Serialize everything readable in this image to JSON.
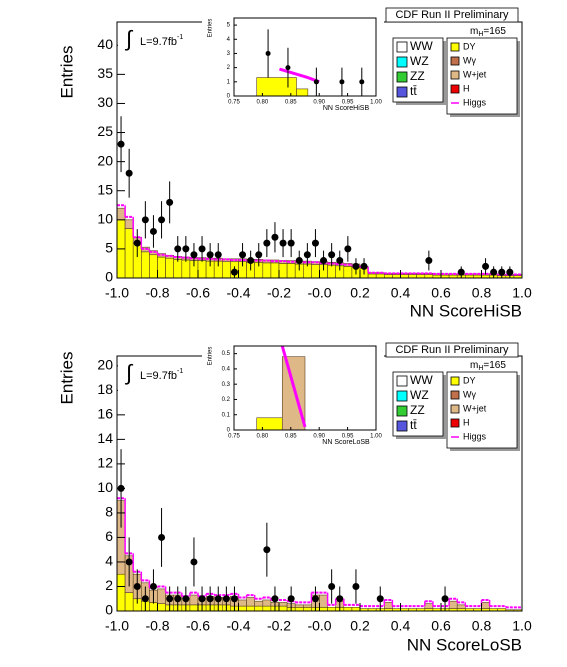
{
  "chart_data": [
    {
      "type": "histogram",
      "title": "CDF Run II Preliminary",
      "mass_label": {
        "main": "m",
        "sub": "H",
        "rest": "=165"
      },
      "lumi": {
        "symbol": "∫",
        "main": "L=9.7fb",
        "sup": "-1"
      },
      "xlabel": "NN ScoreHiSB",
      "ylabel": "Entries",
      "xlim": [
        -1,
        1
      ],
      "ylim": [
        0,
        44
      ],
      "xticks": [
        {
          "value": -1,
          "label": "-1.0"
        },
        -0.8,
        -0.6,
        -0.4,
        -0.2,
        {
          "value": 0,
          "label": "-0.0"
        },
        0.2,
        0.4,
        0.6,
        0.8,
        {
          "value": 1,
          "label": "1.0"
        }
      ],
      "yticks": [
        0,
        5,
        10,
        15,
        20,
        25,
        30,
        35,
        40
      ],
      "bins": [
        -1,
        -0.96,
        -0.92,
        -0.88,
        -0.84,
        -0.8,
        -0.76,
        -0.72,
        -0.68,
        -0.64,
        -0.6,
        -0.56,
        -0.52,
        -0.48,
        -0.44,
        -0.4,
        -0.36,
        -0.32,
        -0.28,
        -0.24,
        -0.2,
        -0.16,
        -0.12,
        -0.08,
        -0.04,
        0,
        0.04,
        0.08,
        0.12,
        0.16,
        0.2,
        0.24,
        0.28,
        0.32,
        0.36,
        0.4,
        0.44,
        0.48,
        0.52,
        0.56,
        0.6,
        0.64,
        0.68,
        0.72,
        0.76,
        0.8,
        0.84,
        0.88,
        0.92,
        0.96,
        1
      ],
      "series": [
        {
          "name": "WW",
          "color": "#ffffff"
        },
        {
          "name": "WZ",
          "color": "#00ffff"
        },
        {
          "name": "ZZ",
          "color": "#33cc33"
        },
        {
          "name": "tt̄",
          "color": "#5555dd"
        },
        {
          "name": "DY",
          "color": "#ffff00",
          "values": [
            10,
            8.5,
            6,
            4.5,
            4,
            3.6,
            3.4,
            3.2,
            3.1,
            3,
            3,
            2.9,
            2.9,
            2.8,
            2.8,
            2.8,
            2.7,
            2.7,
            2.6,
            2.6,
            2.5,
            2.5,
            2.4,
            2.4,
            2.3,
            2.3,
            2.2,
            2.1,
            2,
            1.9,
            1.7,
            0.7,
            0.7,
            0.6,
            0.6,
            0.6,
            0.6,
            0.6,
            0.6,
            0.5,
            0.5,
            0.5,
            0.5,
            0.5,
            0.5,
            0.5,
            0.5,
            0.4,
            0.4,
            0.4
          ]
        },
        {
          "name": "Wγ",
          "color": "#c0704a"
        },
        {
          "name": "W+jet",
          "color": "#deb887",
          "values": [
            2,
            1.5,
            1,
            0.8,
            0.7,
            0.6,
            0.5,
            0.5,
            0.5,
            0.5,
            0.5,
            0.5,
            0.5,
            0.5,
            0.5,
            0.5,
            0.5,
            0.5,
            0.5,
            0.5,
            0.5,
            0.5,
            0.5,
            0.5,
            0.5,
            0.5,
            0.5,
            0.5,
            0.5,
            0.5,
            0.3,
            0.2,
            0.2,
            0.2,
            0.2,
            0.2,
            0.2,
            0.2,
            0.2,
            0.2,
            0.2,
            0.2,
            0.2,
            0.2,
            0.2,
            0.2,
            0.2,
            0.2,
            0.2,
            0.2
          ]
        },
        {
          "name": "H",
          "color": "#ee0000"
        },
        {
          "name": "Higgs",
          "color": "#ff00ff",
          "style": "line",
          "values": [
            12.5,
            10.5,
            7,
            5,
            4.5,
            4,
            3.8,
            3.6,
            3.5,
            3.4,
            3.3,
            3.3,
            3.2,
            3.2,
            3.1,
            3.1,
            3,
            3,
            3,
            2.9,
            2.9,
            2.8,
            2.8,
            2.7,
            2.7,
            2.6,
            2.5,
            2.4,
            2.3,
            2.1,
            1.9,
            0.9,
            0.9,
            0.8,
            0.8,
            0.8,
            0.8,
            0.8,
            0.8,
            0.7,
            0.7,
            0.7,
            0.7,
            0.7,
            0.7,
            0.7,
            0.7,
            0.6,
            0.6,
            0.6
          ]
        }
      ],
      "points": {
        "x": [
          -0.98,
          -0.94,
          -0.9,
          -0.86,
          -0.82,
          -0.78,
          -0.74,
          -0.7,
          -0.66,
          -0.62,
          -0.58,
          -0.54,
          -0.5,
          -0.42,
          -0.38,
          -0.34,
          -0.3,
          -0.26,
          -0.22,
          -0.18,
          -0.14,
          -0.1,
          -0.06,
          -0.02,
          0.02,
          0.06,
          0.1,
          0.14,
          0.18,
          0.22,
          0.54,
          0.7,
          0.82,
          0.86,
          0.9,
          0.94
        ],
        "y": [
          23,
          18,
          6,
          10,
          8,
          10,
          13,
          5,
          5,
          4,
          5,
          4,
          4,
          1,
          4,
          3,
          4,
          6,
          7,
          6,
          6,
          3,
          4,
          6,
          3,
          4,
          3,
          5,
          2,
          2,
          3,
          1,
          2,
          1,
          1,
          1
        ],
        "errors": [
          4.8,
          4.2,
          2.4,
          3.2,
          2.8,
          3.2,
          3.6,
          2.2,
          2.2,
          2,
          2.2,
          2,
          2,
          1,
          2,
          1.7,
          2,
          2.4,
          2.6,
          2.4,
          2.4,
          1.7,
          2,
          2.4,
          1.7,
          2,
          1.7,
          2.2,
          1.4,
          1.4,
          1.7,
          1,
          1.4,
          1,
          1,
          1
        ]
      },
      "inset": {
        "xlabel": "NN ScoreHiSB",
        "ylabel": "Entries",
        "xlim": [
          0.75,
          1
        ],
        "ylim": [
          0,
          5.5
        ],
        "xticks": [
          0.75,
          {
            "value": 0.8,
            "label": "0.80"
          },
          0.85,
          {
            "value": 0.9,
            "label": "0.90"
          },
          0.95,
          {
            "value": 1,
            "label": "1.00"
          }
        ],
        "yticks": [
          0,
          1,
          2,
          3,
          4,
          5
        ],
        "bins": [
          0.79,
          0.86,
          0.88
        ],
        "stack": [
          {
            "color": "#ffff00",
            "values": [
              1.3,
              0.5
            ]
          }
        ],
        "signal": {
          "color": "#ff00ff",
          "x": [
            0.83,
            0.88,
            0.9
          ],
          "y": [
            1.9,
            1.3,
            1
          ]
        },
        "points": {
          "x": [
            0.81,
            0.845,
            0.895,
            0.94,
            0.975
          ],
          "y": [
            3,
            2,
            1,
            1,
            1
          ],
          "errors": [
            1.7,
            1.4,
            1,
            1,
            1
          ]
        }
      }
    },
    {
      "type": "histogram",
      "title": "CDF Run II Preliminary",
      "mass_label": {
        "main": "m",
        "sub": "H",
        "rest": "=165"
      },
      "lumi": {
        "symbol": "∫",
        "main": "L=9.7fb",
        "sup": "-1"
      },
      "xlabel": "NN ScoreLoSB",
      "ylabel": "Entries",
      "xlim": [
        -1,
        1
      ],
      "ylim": [
        0,
        20.8
      ],
      "xticks": [
        {
          "value": -1,
          "label": "-1.0"
        },
        -0.8,
        -0.6,
        -0.4,
        -0.2,
        {
          "value": 0,
          "label": "-0.0"
        },
        0.2,
        0.4,
        0.6,
        0.8,
        {
          "value": 1,
          "label": "1.0"
        }
      ],
      "yticks": [
        0,
        2,
        4,
        6,
        8,
        10,
        12,
        14,
        16,
        18,
        20
      ],
      "bins": [
        -1,
        -0.96,
        -0.92,
        -0.88,
        -0.84,
        -0.8,
        -0.76,
        -0.72,
        -0.68,
        -0.64,
        -0.6,
        -0.56,
        -0.52,
        -0.48,
        -0.44,
        -0.4,
        -0.36,
        -0.32,
        -0.28,
        -0.24,
        -0.2,
        -0.16,
        -0.12,
        -0.08,
        -0.04,
        0,
        0.04,
        0.08,
        0.12,
        0.16,
        0.2,
        0.24,
        0.28,
        0.32,
        0.36,
        0.4,
        0.44,
        0.48,
        0.52,
        0.56,
        0.6,
        0.64,
        0.68,
        0.72,
        0.76,
        0.8,
        0.84,
        0.88,
        0.92,
        0.96,
        1
      ],
      "series": [
        {
          "name": "WW",
          "color": "#ffffff"
        },
        {
          "name": "WZ",
          "color": "#00ffff"
        },
        {
          "name": "ZZ",
          "color": "#33cc33"
        },
        {
          "name": "tt̄",
          "color": "#5555dd"
        },
        {
          "name": "DY",
          "color": "#ffff00",
          "values": [
            3,
            1.5,
            1,
            0.8,
            0.7,
            0.6,
            0.5,
            0.5,
            0.5,
            0.5,
            0.5,
            0.5,
            0.5,
            0.5,
            0.4,
            0.4,
            0.4,
            0.4,
            0.4,
            0.4,
            0.4,
            0.3,
            0.3,
            0.3,
            0.3,
            0.3,
            0.3,
            0.3,
            0.3,
            0.3,
            0.2,
            0.2,
            0.2,
            0.2,
            0.2,
            0.2,
            0.2,
            0.2,
            0.2,
            0.2,
            0.2,
            0.2,
            0.2,
            0.2,
            0.2,
            0.2,
            0.2,
            0.2,
            0.1,
            0.1
          ]
        },
        {
          "name": "Wγ",
          "color": "#c0704a"
        },
        {
          "name": "W+jet",
          "color": "#deb887",
          "values": [
            6,
            3,
            2,
            1.5,
            1,
            1.2,
            0.8,
            0.8,
            0.5,
            0.8,
            0.5,
            0.7,
            0.6,
            0.6,
            0.8,
            0.5,
            0.7,
            0.4,
            0.5,
            0.3,
            0.3,
            0.3,
            0.2,
            0.2,
            1,
            1,
            0,
            0.5,
            0,
            0,
            0,
            0,
            0,
            0.5,
            0,
            0,
            0,
            0,
            0.4,
            0,
            0,
            0.6,
            0.3,
            0,
            0,
            0.5,
            0,
            0,
            0,
            0
          ]
        },
        {
          "name": "H",
          "color": "#ee0000"
        },
        {
          "name": "Higgs",
          "color": "#ff00ff",
          "style": "line",
          "values": [
            9.2,
            4.7,
            3.2,
            2.5,
            1.9,
            2,
            1.5,
            1.5,
            1.2,
            1.5,
            1.2,
            1.4,
            1.3,
            1.3,
            1.4,
            1.1,
            1.3,
            1,
            1.1,
            0.9,
            0.9,
            0.8,
            0.7,
            0.7,
            1.5,
            1.5,
            0.5,
            1,
            0.5,
            0.5,
            0.4,
            0.4,
            0.4,
            0.9,
            0.4,
            0.4,
            0.4,
            0.4,
            0.8,
            0.4,
            0.4,
            1,
            0.7,
            0.4,
            0.4,
            0.9,
            0.4,
            0.4,
            0.3,
            0.3
          ]
        }
      ],
      "points": {
        "x": [
          -0.98,
          -0.94,
          -0.9,
          -0.86,
          -0.82,
          -0.78,
          -0.74,
          -0.7,
          -0.66,
          -0.62,
          -0.58,
          -0.54,
          -0.5,
          -0.46,
          -0.42,
          -0.26,
          -0.22,
          -0.14,
          -0.02,
          0.06,
          0.1,
          0.18,
          0.3,
          0.62
        ],
        "y": [
          10,
          4,
          2,
          1,
          2,
          6,
          1,
          1,
          1,
          4,
          1,
          1,
          1,
          1,
          1,
          5,
          1,
          1,
          1,
          2,
          1,
          2,
          1,
          1
        ],
        "errors": [
          3.2,
          2,
          1.4,
          1,
          1.4,
          2.4,
          1,
          1,
          1,
          2,
          1,
          1,
          1,
          1,
          1,
          2.2,
          1,
          1,
          1,
          1.4,
          1,
          1.4,
          1,
          1
        ]
      },
      "inset": {
        "xlabel": "NN ScoreLoSB",
        "ylabel": "Entries",
        "xlim": [
          0.75,
          1
        ],
        "ylim": [
          0,
          0.55
        ],
        "xticks": [
          0.75,
          {
            "value": 0.8,
            "label": "0.80"
          },
          0.85,
          {
            "value": 0.9,
            "label": "0.90"
          },
          0.95,
          {
            "value": 1,
            "label": "1.00"
          }
        ],
        "yticks": [
          0,
          0.1,
          0.2,
          0.3,
          0.4,
          0.5
        ],
        "bins": [
          0.79,
          0.835,
          0.875
        ],
        "stack": [
          {
            "color": "#ffff00",
            "values": [
              0.08,
              0
            ]
          },
          {
            "color": "#deb887",
            "values": [
              0,
              0.48
            ]
          }
        ],
        "signal": {
          "color": "#ff00ff",
          "x": [
            0.835,
            0.875
          ],
          "y": [
            0.55,
            0.02
          ]
        }
      }
    }
  ]
}
